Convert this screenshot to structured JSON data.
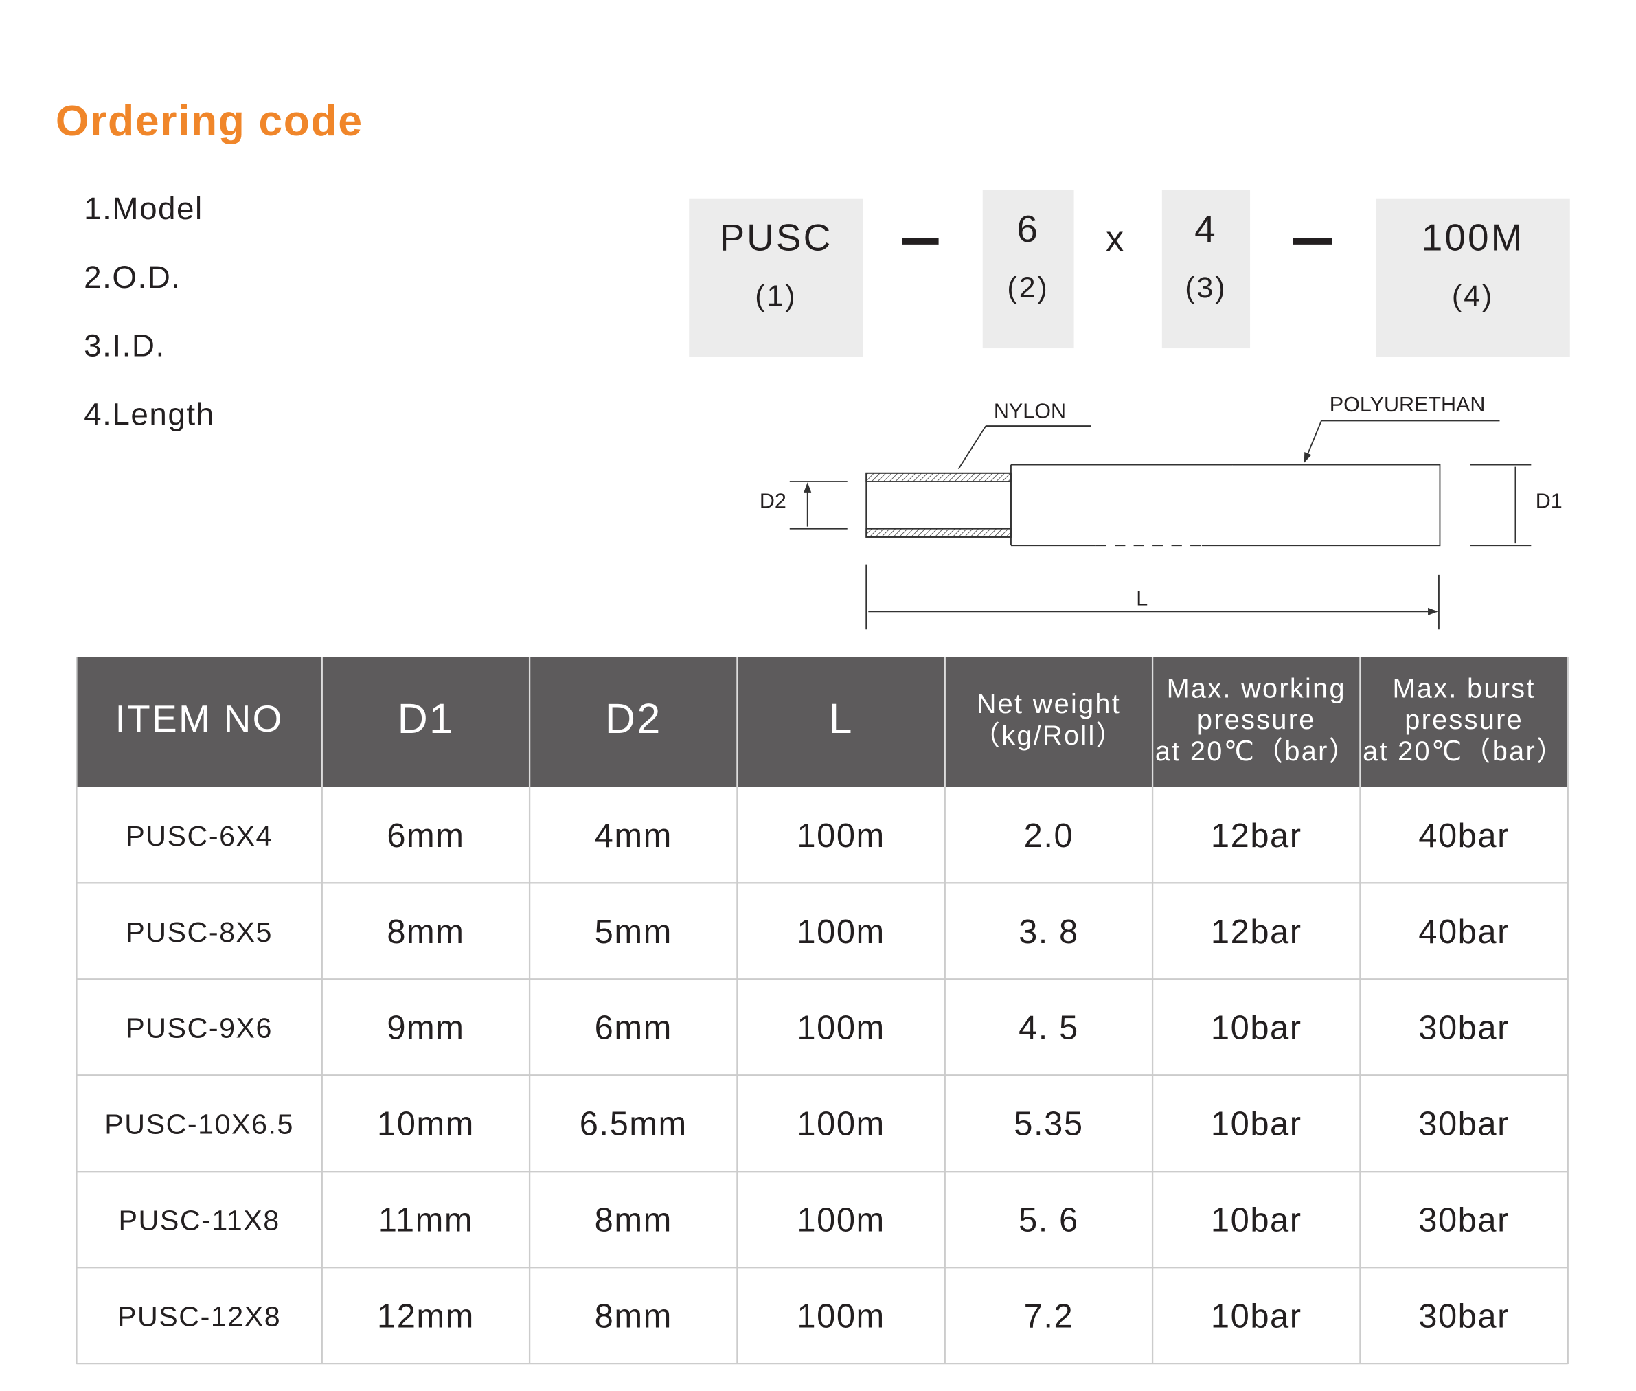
{
  "header": {
    "title": "Ordering code"
  },
  "model_list": [
    "1.Model",
    "2.O.D.",
    "3.I.D.",
    "4.Length"
  ],
  "code": {
    "parts": [
      {
        "code": "PUSC",
        "index": "(1)"
      },
      {
        "code": "6",
        "index": "(2)"
      },
      {
        "code": "4",
        "index": "(3)"
      },
      {
        "code": "100M",
        "index": "(4)"
      }
    ],
    "separator": "x"
  },
  "diagram": {
    "nylon": "NYLON",
    "polyurethan": "POLYURETHAN",
    "d2": "D2",
    "d1": "D1",
    "l": "L"
  },
  "table": {
    "header": [
      [
        "ITEM NO"
      ],
      [
        "D1"
      ],
      [
        "D2"
      ],
      [
        "L"
      ],
      [
        "Net weight",
        "（kg/Roll）"
      ],
      [
        "Max. working",
        "pressure",
        "at 20℃（bar）"
      ],
      [
        "Max. burst",
        "pressure",
        "at 20℃（bar）"
      ]
    ],
    "rows": [
      [
        "PUSC-6X4",
        "6mm",
        "4mm",
        "100m",
        "2.0",
        "12bar",
        "40bar"
      ],
      [
        "PUSC-8X5",
        "8mm",
        "5mm",
        "100m",
        "3. 8",
        "12bar",
        "40bar"
      ],
      [
        "PUSC-9X6",
        "9mm",
        "6mm",
        "100m",
        "4. 5",
        "10bar",
        "30bar"
      ],
      [
        "PUSC-10X6.5",
        "10mm",
        "6.5mm",
        "100m",
        "5.35",
        "10bar",
        "30bar"
      ],
      [
        "PUSC-11X8",
        "11mm",
        "8mm",
        "100m",
        "5. 6",
        "10bar",
        "30bar"
      ],
      [
        "PUSC-12X8",
        "12mm",
        "8mm",
        "100m",
        "7.2",
        "10bar",
        "30bar"
      ]
    ]
  }
}
